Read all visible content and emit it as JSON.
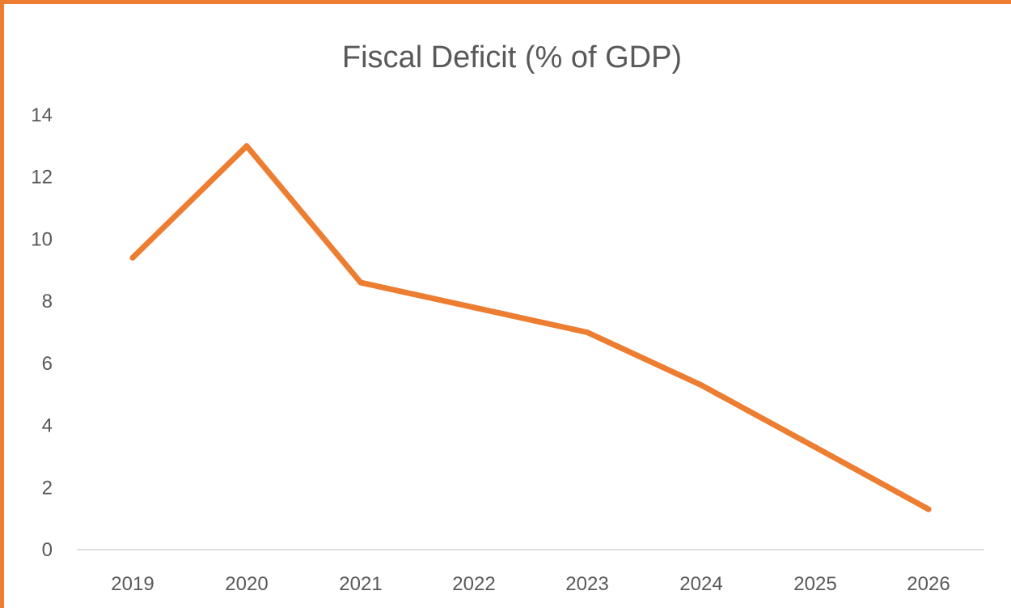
{
  "chart_data": {
    "type": "line",
    "title": "Fiscal Deficit (% of GDP)",
    "xlabel": "",
    "ylabel": "",
    "categories": [
      "2019",
      "2020",
      "2021",
      "2022",
      "2023",
      "2024",
      "2025",
      "2026"
    ],
    "series": [
      {
        "values": [
          9.4,
          13.0,
          8.6,
          7.8,
          7.0,
          5.3,
          3.3,
          1.3
        ],
        "color": "#ED7D31"
      }
    ],
    "ylim": [
      0,
      14
    ],
    "yticks": [
      "0",
      "2",
      "4",
      "6",
      "8",
      "10",
      "12",
      "14"
    ],
    "grid": false,
    "legend": "none",
    "axis_color": "#D9D9D9",
    "text_color": "#595959",
    "frame_color": "#ED7D31"
  }
}
